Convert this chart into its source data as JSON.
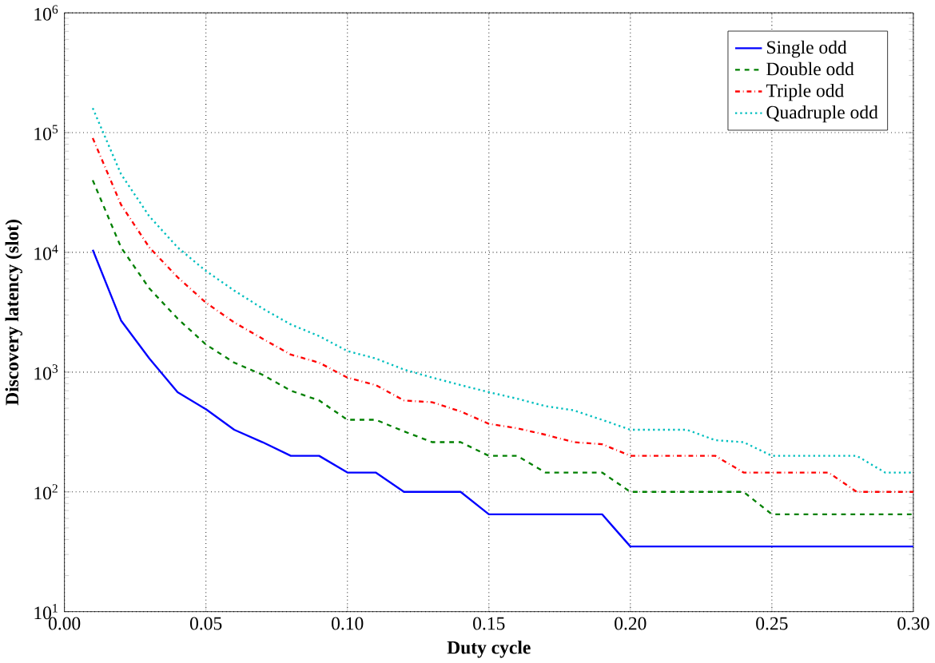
{
  "chart_data": {
    "type": "line",
    "xlabel": "Duty cycle",
    "ylabel": "Discovery latency (slot)",
    "log": "y",
    "grid": true,
    "legend": "top right",
    "x": [
      0.01,
      0.02,
      0.03,
      0.04,
      0.05,
      0.06,
      0.07,
      0.08,
      0.09,
      0.1,
      0.11,
      0.12,
      0.13,
      0.14,
      0.15,
      0.16,
      0.17,
      0.18,
      0.19,
      0.2,
      0.21,
      0.22,
      0.23,
      0.24,
      0.25,
      0.26,
      0.27,
      0.28,
      0.29,
      0.3
    ],
    "xlim": [
      0,
      0.3
    ],
    "xticks": [
      {
        "value": 0,
        "label": "0.00"
      },
      {
        "value": 0.05,
        "label": "0.05"
      },
      {
        "value": 0.1,
        "label": "0.10"
      },
      {
        "value": 0.15,
        "label": "0.15"
      },
      {
        "value": 0.2,
        "label": "0.20"
      },
      {
        "value": 0.25,
        "label": "0.25"
      },
      {
        "value": 0.3,
        "label": "0.30"
      }
    ],
    "ylim": [
      10,
      1000000
    ],
    "yticks": [
      {
        "value": 10,
        "label": "10$^{1}$"
      },
      {
        "value": 100,
        "label": "10$^{2}$"
      },
      {
        "value": 1000,
        "label": "10$^{3}$"
      },
      {
        "value": 10000,
        "label": "10$^{4}$"
      },
      {
        "value": 100000,
        "label": "10$^{5}$"
      },
      {
        "value": 1000000,
        "label": "10$^{6}$"
      }
    ],
    "series": [
      {
        "name": "Single odd",
        "color": "#0000ff",
        "line_style": "solid",
        "values": [
          10500,
          2700,
          1300,
          680,
          490,
          330,
          260,
          200,
          200,
          145,
          145,
          100,
          100,
          100,
          65,
          65,
          65,
          65,
          65,
          35,
          35,
          35,
          35,
          35,
          35,
          35,
          35,
          35,
          35,
          35
        ]
      },
      {
        "name": "Double odd",
        "color": "#008000",
        "line_style": "dashed",
        "values": [
          40000,
          11000,
          5000,
          2800,
          1700,
          1200,
          950,
          700,
          580,
          400,
          400,
          320,
          260,
          260,
          200,
          200,
          145,
          145,
          145,
          100,
          100,
          100,
          100,
          100,
          65,
          65,
          65,
          65,
          65,
          65
        ]
      },
      {
        "name": "Triple odd",
        "color": "#ff0000",
        "line_style": "dashdot",
        "values": [
          90000,
          25000,
          11000,
          6200,
          3800,
          2600,
          1900,
          1400,
          1200,
          900,
          780,
          580,
          560,
          470,
          370,
          340,
          300,
          260,
          250,
          200,
          200,
          200,
          200,
          145,
          145,
          145,
          145,
          100,
          100,
          100
        ]
      },
      {
        "name": "Quadruple odd",
        "color": "#00bfbf",
        "line_style": "dotted",
        "values": [
          160000,
          45000,
          20000,
          11000,
          7000,
          4800,
          3400,
          2500,
          2000,
          1500,
          1300,
          1050,
          900,
          780,
          680,
          600,
          520,
          480,
          400,
          330,
          330,
          330,
          270,
          260,
          200,
          200,
          200,
          200,
          145,
          145
        ]
      }
    ]
  }
}
